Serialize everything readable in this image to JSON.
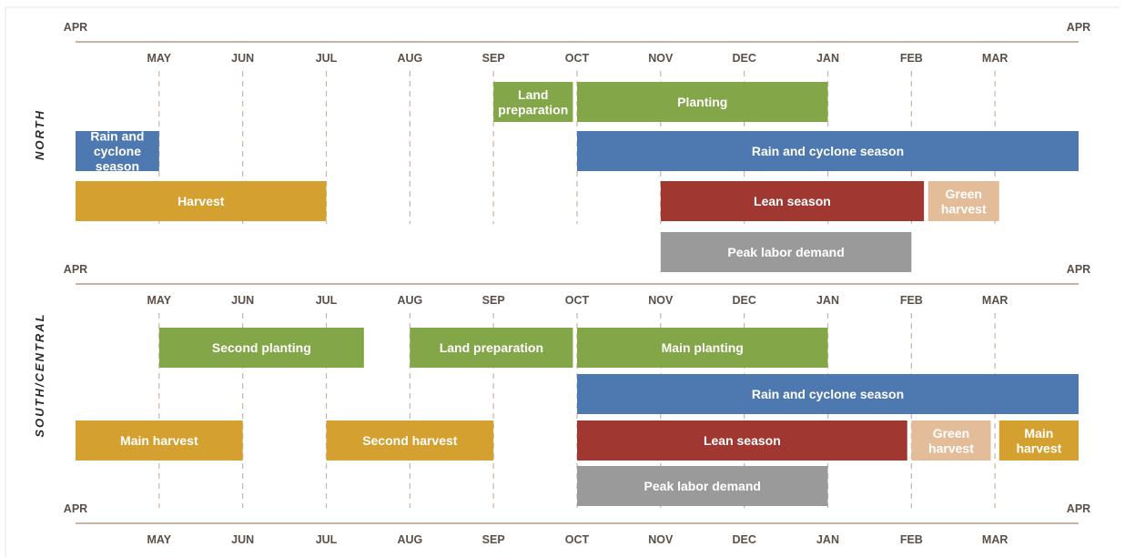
{
  "colors": {
    "green": "#82a648",
    "blue": "#4e79b0",
    "gold": "#d4a130",
    "red": "#a03730",
    "tan": "#e3bd9a",
    "gray": "#9a9a9a",
    "axis": "#c7b4a4"
  },
  "axes": {
    "top_start": "APR",
    "top_end": "APR",
    "months": [
      "MAY",
      "JUN",
      "JUL",
      "AUG",
      "SEP",
      "OCT",
      "NOV",
      "DEC",
      "JAN",
      "FEB",
      "MAR"
    ]
  },
  "regions": [
    {
      "id": "north",
      "name": "NORTH",
      "end_label": "APR",
      "bars": [
        {
          "label": "Land preparation",
          "start": 5,
          "end": 5.95,
          "row": 0,
          "color": "green"
        },
        {
          "label": "Planting",
          "start": 6,
          "end": 9,
          "row": 0,
          "color": "green"
        },
        {
          "label": "Rain and cyclone season",
          "start": 0,
          "end": 1,
          "row": 1,
          "color": "blue"
        },
        {
          "label": "Rain and cyclone season",
          "start": 6,
          "end": 12,
          "row": 1,
          "color": "blue"
        },
        {
          "label": "Harvest",
          "start": 0,
          "end": 3,
          "row": 2,
          "color": "gold"
        },
        {
          "label": "Lean season",
          "start": 7,
          "end": 10.15,
          "row": 2,
          "color": "red"
        },
        {
          "label": "Green harvest",
          "start": 10.2,
          "end": 11.05,
          "row": 2,
          "color": "tan"
        },
        {
          "label": "Peak labor demand",
          "start": 7,
          "end": 10,
          "row": 3,
          "color": "gray"
        }
      ]
    },
    {
      "id": "south-central",
      "name": "SOUTH/CENTRAL",
      "end_label": "APR",
      "bars": [
        {
          "label": "Second planting",
          "start": 1,
          "end": 3.45,
          "row": 0,
          "color": "green"
        },
        {
          "label": "Land preparation",
          "start": 4,
          "end": 5.95,
          "row": 0,
          "color": "green"
        },
        {
          "label": "Main planting",
          "start": 6,
          "end": 9,
          "row": 0,
          "color": "green"
        },
        {
          "label": "Rain and cyclone season",
          "start": 6,
          "end": 12,
          "row": 1,
          "color": "blue"
        },
        {
          "label": "Main harvest",
          "start": 0,
          "end": 2,
          "row": 2,
          "color": "gold"
        },
        {
          "label": "Second harvest",
          "start": 3,
          "end": 5,
          "row": 2,
          "color": "gold"
        },
        {
          "label": "Lean season",
          "start": 6,
          "end": 9.95,
          "row": 2,
          "color": "red"
        },
        {
          "label": "Green harvest",
          "start": 10,
          "end": 10.95,
          "row": 2,
          "color": "tan"
        },
        {
          "label": "Main harvest",
          "start": 11.05,
          "end": 12,
          "row": 2,
          "color": "gold"
        },
        {
          "label": "Peak labor demand",
          "start": 6,
          "end": 9,
          "row": 3,
          "color": "gray"
        }
      ]
    }
  ]
}
